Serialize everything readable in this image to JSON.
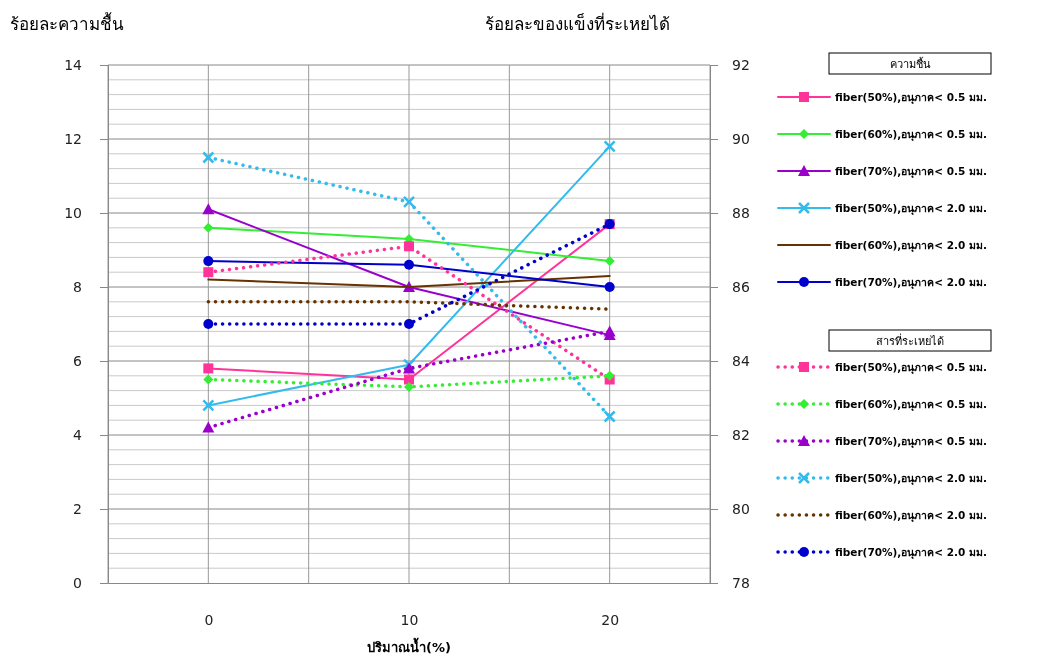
{
  "chart_data": {
    "type": "line",
    "xlabel": "ปริมาณน้ำ(%)",
    "ylabel": "ร้อยละความชื้น",
    "y2label": "ร้อยละของแข็งที่ระเหยได้",
    "legend_title": "ความชื้น",
    "annotations": [
      "สารที่ระเหยได้"
    ],
    "categories": [
      "0",
      "10",
      "20"
    ],
    "ylim": [
      0,
      14
    ],
    "yticks": [
      0,
      2,
      4,
      6,
      8,
      10,
      12,
      14
    ],
    "y2lim": [
      78,
      92
    ],
    "y2ticks": [
      78,
      80,
      82,
      84,
      86,
      88,
      90,
      92
    ],
    "grid": true,
    "legend": "right",
    "series": [
      {
        "name": "fiber(50%),อนุภาค< 0.5 มม.",
        "color": "#ff3399",
        "marker": "square",
        "line_style": "solid",
        "values": [
          5.8,
          5.5,
          9.7
        ]
      },
      {
        "name": "fiber(60%),อนุภาค< 0.5 มม.",
        "color": "#33ee33",
        "marker": "diamond",
        "line_style": "solid",
        "values": [
          9.6,
          9.3,
          8.7
        ]
      },
      {
        "name": "fiber(70%),อนุภาค< 0.5 มม.",
        "color": "#9900cc",
        "marker": "triangle",
        "line_style": "solid",
        "values": [
          10.1,
          8.0,
          6.7
        ]
      },
      {
        "name": "fiber(50%),อนุภาค< 2.0 มม.",
        "color": "#33bbee",
        "marker": "cross",
        "line_style": "solid",
        "values": [
          4.8,
          5.9,
          11.8
        ]
      },
      {
        "name": "fiber(60%),อนุภาค< 2.0 มม.",
        "color": "#663300",
        "marker": "none",
        "line_style": "solid",
        "values": [
          8.2,
          8.0,
          8.3
        ]
      },
      {
        "name": "fiber(70%),อนุภาค< 2.0 มม.",
        "color": "#0000cc",
        "marker": "circle",
        "line_style": "solid",
        "values": [
          8.7,
          8.6,
          8.0
        ]
      },
      {
        "name": "fiber(50%),อนุภาค< 0.5 มม.",
        "color": "#ff3399",
        "marker": "square",
        "line_style": "dotted",
        "axis": "y2",
        "values": [
          86.4,
          87.1,
          83.5
        ]
      },
      {
        "name": "fiber(60%),อนุภาค< 0.5 มม.",
        "color": "#33ee33",
        "marker": "diamond",
        "line_style": "dotted",
        "axis": "y2",
        "values": [
          83.5,
          83.3,
          83.6
        ]
      },
      {
        "name": "fiber(70%),อนุภาค< 0.5 มม.",
        "color": "#9900cc",
        "marker": "triangle",
        "line_style": "dotted",
        "axis": "y2",
        "values": [
          82.2,
          83.8,
          84.8
        ]
      },
      {
        "name": "fiber(50%),อนุภาค< 2.0 มม.",
        "color": "#33bbee",
        "marker": "cross",
        "line_style": "dotted",
        "axis": "y2",
        "values": [
          89.5,
          88.3,
          82.5
        ]
      },
      {
        "name": "fiber(60%),อนุภาค< 2.0 มม.",
        "color": "#663300",
        "marker": "none",
        "line_style": "dotted",
        "axis": "y2",
        "values": [
          85.6,
          85.6,
          85.4
        ]
      },
      {
        "name": "fiber(70%),อนุภาค< 2.0 มม.",
        "color": "#0000cc",
        "marker": "circle",
        "line_style": "dotted",
        "axis": "y2",
        "values": [
          85.0,
          85.0,
          87.7
        ]
      }
    ]
  }
}
